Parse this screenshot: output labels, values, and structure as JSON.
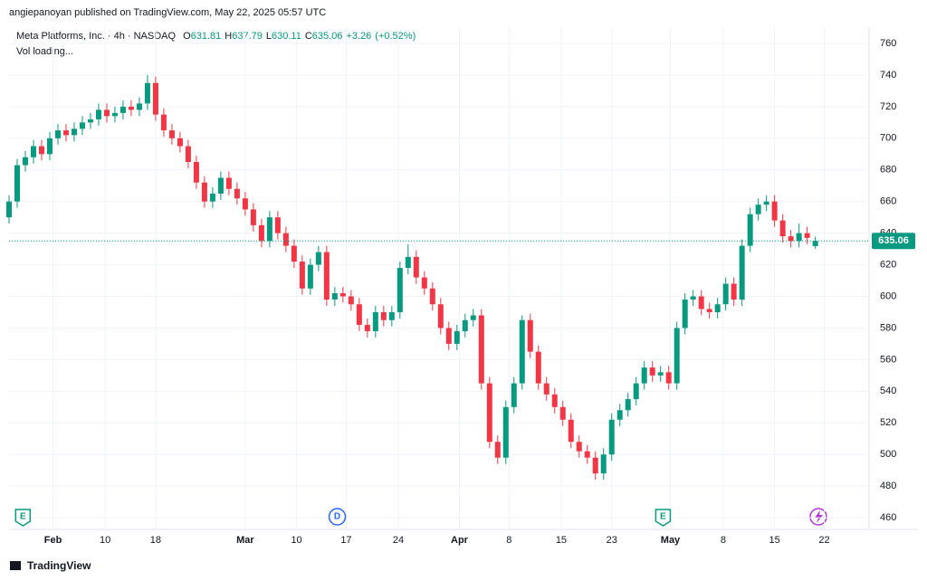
{
  "publisher": "angiepanoyan published on TradingView.com, May 22, 2025 05:57 UTC",
  "footer": "TradingView",
  "chart_data": {
    "type": "candlestick",
    "title": "Meta Platforms, Inc. · 4h · NASDAQ",
    "ohlc_letters": [
      "O",
      "H",
      "L",
      "C"
    ],
    "change": {
      "value": 3.26,
      "label": "+3.26"
    },
    "change_pct": {
      "value": 0.52,
      "label": "(+0.52%)"
    },
    "volume_status": "Vol loading...",
    "up_color": "#089981",
    "down_color": "#f23645",
    "ylim": [
      452.6,
      770.3
    ],
    "yticks": [
      460,
      480,
      500,
      520,
      540,
      560,
      580,
      600,
      620,
      640,
      660,
      680,
      700,
      720,
      740,
      760
    ],
    "xlim": [
      0,
      105.6
    ],
    "xticks": [
      {
        "value": 5.4,
        "label": "Feb"
      },
      {
        "value": 11.8,
        "label": "10"
      },
      {
        "value": 18,
        "label": "18"
      },
      {
        "value": 29,
        "label": "Mar"
      },
      {
        "value": 35.3,
        "label": "10"
      },
      {
        "value": 41.4,
        "label": "17"
      },
      {
        "value": 47.8,
        "label": "24"
      },
      {
        "value": 55.3,
        "label": "Apr"
      },
      {
        "value": 61.4,
        "label": "8"
      },
      {
        "value": 67.8,
        "label": "15"
      },
      {
        "value": 74,
        "label": "23"
      },
      {
        "value": 81.2,
        "label": "May"
      },
      {
        "value": 87.7,
        "label": "8"
      },
      {
        "value": 94,
        "label": "15"
      },
      {
        "value": 100.1,
        "label": "22"
      }
    ],
    "events": [
      {
        "label": "E",
        "x": 1.7
      },
      {
        "label": "D",
        "x": 40.3
      },
      {
        "label": "E",
        "x": 80.3
      }
    ],
    "grid": true,
    "open": [
      650,
      660,
      683,
      688,
      695,
      690,
      700,
      705,
      702,
      706,
      710,
      712,
      718,
      714,
      716,
      720,
      718,
      722,
      735,
      715,
      705,
      700,
      695,
      685,
      672,
      660,
      665,
      675,
      668,
      662,
      655,
      645,
      635,
      650,
      640,
      632,
      622,
      605,
      620,
      628,
      598,
      602,
      600,
      595,
      582,
      578,
      590,
      585,
      590,
      618,
      625,
      612,
      605,
      595,
      580,
      570,
      578,
      585,
      588,
      545,
      508,
      498,
      530,
      545,
      585,
      565,
      545,
      538,
      530,
      522,
      508,
      502,
      498,
      488,
      500,
      522,
      528,
      535,
      545,
      555,
      550,
      552,
      545,
      580,
      598,
      600,
      592,
      590,
      595,
      608,
      598,
      632,
      652,
      658,
      660,
      648,
      638,
      635,
      640,
      631.81
    ],
    "high": [
      664,
      687,
      692,
      699,
      699,
      704,
      709,
      709,
      710,
      714,
      716,
      722,
      722,
      720,
      724,
      724,
      726,
      740,
      739,
      719,
      709,
      704,
      699,
      689,
      676,
      669,
      679,
      679,
      672,
      666,
      659,
      649,
      654,
      654,
      644,
      636,
      626,
      624,
      632,
      632,
      606,
      606,
      604,
      599,
      586,
      594,
      594,
      594,
      622,
      633,
      629,
      616,
      609,
      599,
      584,
      582,
      589,
      592,
      592,
      549,
      512,
      534,
      549,
      588,
      589,
      569,
      549,
      542,
      534,
      526,
      512,
      506,
      502,
      504,
      526,
      532,
      539,
      549,
      559,
      559,
      556,
      556,
      584,
      602,
      604,
      604,
      596,
      599,
      612,
      612,
      636,
      656,
      662,
      664,
      664,
      652,
      642,
      646,
      644,
      637.79
    ],
    "low": [
      646,
      656,
      679,
      684,
      686,
      686,
      696,
      698,
      698,
      702,
      706,
      708,
      710,
      710,
      712,
      714,
      714,
      718,
      711,
      701,
      696,
      691,
      681,
      668,
      656,
      656,
      661,
      664,
      658,
      651,
      641,
      631,
      631,
      636,
      628,
      618,
      601,
      601,
      616,
      594,
      594,
      596,
      591,
      578,
      574,
      574,
      581,
      581,
      586,
      614,
      608,
      601,
      591,
      576,
      566,
      566,
      574,
      581,
      541,
      504,
      494,
      494,
      526,
      541,
      561,
      541,
      534,
      526,
      518,
      504,
      498,
      494,
      484,
      484,
      496,
      518,
      524,
      531,
      541,
      546,
      546,
      541,
      541,
      576,
      594,
      588,
      586,
      586,
      591,
      594,
      594,
      628,
      648,
      654,
      644,
      634,
      631,
      631,
      633,
      630.11
    ],
    "close": [
      660,
      683,
      688,
      695,
      690,
      700,
      705,
      702,
      706,
      710,
      712,
      718,
      714,
      716,
      720,
      718,
      722,
      735,
      715,
      705,
      700,
      695,
      685,
      672,
      660,
      665,
      675,
      668,
      662,
      655,
      645,
      635,
      650,
      640,
      632,
      622,
      605,
      620,
      628,
      598,
      602,
      600,
      595,
      582,
      578,
      590,
      585,
      590,
      618,
      625,
      612,
      605,
      595,
      580,
      570,
      578,
      585,
      588,
      545,
      508,
      498,
      530,
      545,
      585,
      565,
      545,
      538,
      530,
      522,
      508,
      502,
      498,
      488,
      500,
      522,
      528,
      535,
      545,
      555,
      550,
      552,
      545,
      580,
      598,
      600,
      592,
      590,
      595,
      608,
      598,
      632,
      652,
      658,
      660,
      648,
      638,
      635,
      640,
      637,
      635.06
    ]
  }
}
